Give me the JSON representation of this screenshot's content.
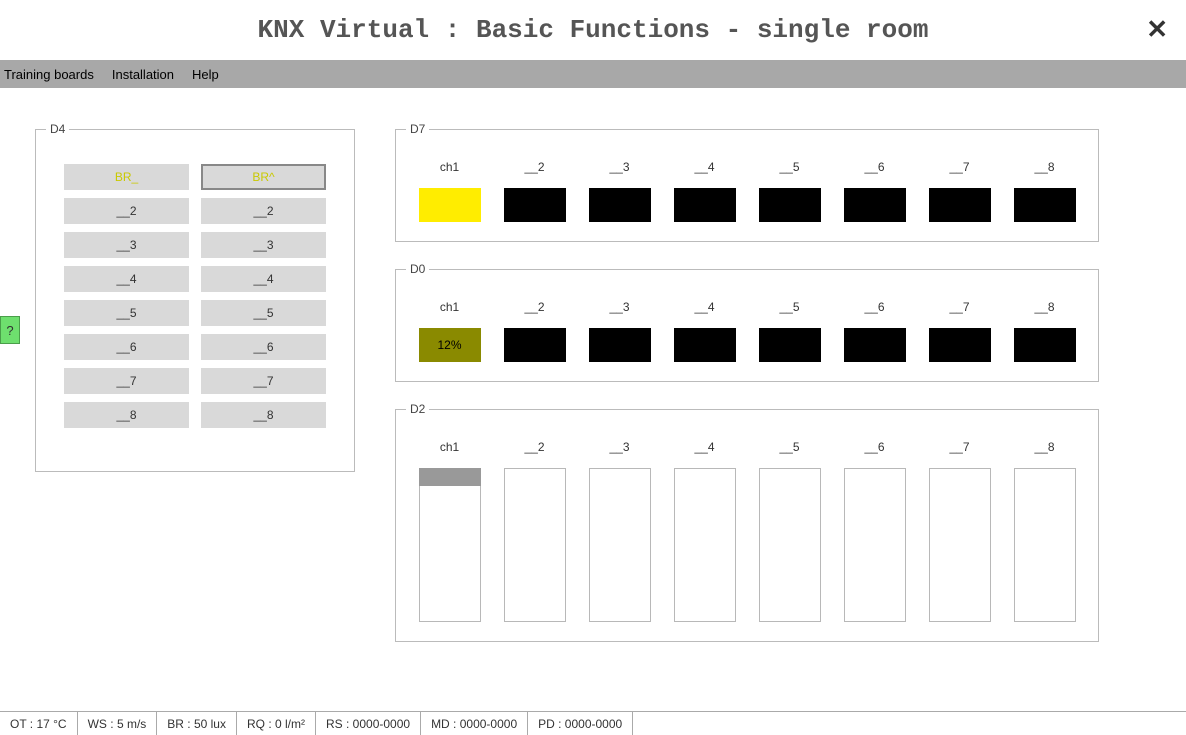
{
  "window": {
    "title": "KNX Virtual : Basic Functions - single room",
    "close_glyph": "✕"
  },
  "menu": {
    "items": [
      "Training boards",
      "Installation",
      "Help"
    ]
  },
  "help_tab": {
    "label": "?"
  },
  "d4": {
    "legend": "D4",
    "left_col": [
      {
        "label": "BR_",
        "style": "yellow"
      },
      {
        "label": "__2",
        "style": ""
      },
      {
        "label": "__3",
        "style": ""
      },
      {
        "label": "__4",
        "style": ""
      },
      {
        "label": "__5",
        "style": ""
      },
      {
        "label": "__6",
        "style": ""
      },
      {
        "label": "__7",
        "style": ""
      },
      {
        "label": "__8",
        "style": ""
      }
    ],
    "right_col": [
      {
        "label": "BR^",
        "style": "selected"
      },
      {
        "label": "__2",
        "style": ""
      },
      {
        "label": "__3",
        "style": ""
      },
      {
        "label": "__4",
        "style": ""
      },
      {
        "label": "__5",
        "style": ""
      },
      {
        "label": "__6",
        "style": ""
      },
      {
        "label": "__7",
        "style": ""
      },
      {
        "label": "__8",
        "style": ""
      }
    ]
  },
  "d7": {
    "legend": "D7",
    "channels": [
      {
        "label": "ch1",
        "value": "",
        "color": "#ffed00",
        "text_color": "#000000"
      },
      {
        "label": "__2",
        "value": "",
        "color": "#000000",
        "text_color": "#ffffff"
      },
      {
        "label": "__3",
        "value": "",
        "color": "#000000",
        "text_color": "#ffffff"
      },
      {
        "label": "__4",
        "value": "",
        "color": "#000000",
        "text_color": "#ffffff"
      },
      {
        "label": "__5",
        "value": "",
        "color": "#000000",
        "text_color": "#ffffff"
      },
      {
        "label": "__6",
        "value": "",
        "color": "#000000",
        "text_color": "#ffffff"
      },
      {
        "label": "__7",
        "value": "",
        "color": "#000000",
        "text_color": "#ffffff"
      },
      {
        "label": "__8",
        "value": "",
        "color": "#000000",
        "text_color": "#ffffff"
      }
    ]
  },
  "d0": {
    "legend": "D0",
    "channels": [
      {
        "label": "ch1",
        "value": "12%",
        "color": "#8a8a00",
        "text_color": "#000000"
      },
      {
        "label": "__2",
        "value": "",
        "color": "#000000",
        "text_color": "#ffffff"
      },
      {
        "label": "__3",
        "value": "",
        "color": "#000000",
        "text_color": "#ffffff"
      },
      {
        "label": "__4",
        "value": "",
        "color": "#000000",
        "text_color": "#ffffff"
      },
      {
        "label": "__5",
        "value": "",
        "color": "#000000",
        "text_color": "#ffffff"
      },
      {
        "label": "__6",
        "value": "",
        "color": "#000000",
        "text_color": "#ffffff"
      },
      {
        "label": "__7",
        "value": "",
        "color": "#000000",
        "text_color": "#ffffff"
      },
      {
        "label": "__8",
        "value": "",
        "color": "#000000",
        "text_color": "#ffffff"
      }
    ]
  },
  "d2": {
    "legend": "D2",
    "channels": [
      {
        "label": "ch1",
        "gray_top": true
      },
      {
        "label": "__2",
        "gray_top": false
      },
      {
        "label": "__3",
        "gray_top": false
      },
      {
        "label": "__4",
        "gray_top": false
      },
      {
        "label": "__5",
        "gray_top": false
      },
      {
        "label": "__6",
        "gray_top": false
      },
      {
        "label": "__7",
        "gray_top": false
      },
      {
        "label": "__8",
        "gray_top": false
      }
    ]
  },
  "status": {
    "cells": [
      "OT : 17 °C",
      "WS : 5 m/s",
      "BR : 50 lux",
      "RQ : 0 l/m²",
      "RS : 0000-0000",
      "MD : 0000-0000",
      "PD : 0000-0000"
    ]
  },
  "colors": {
    "menu_bg": "#a8a8a8",
    "btn_bg": "#d9d9d9",
    "fieldset_border": "#bbbbbb",
    "help_bg": "#6edf6e"
  }
}
